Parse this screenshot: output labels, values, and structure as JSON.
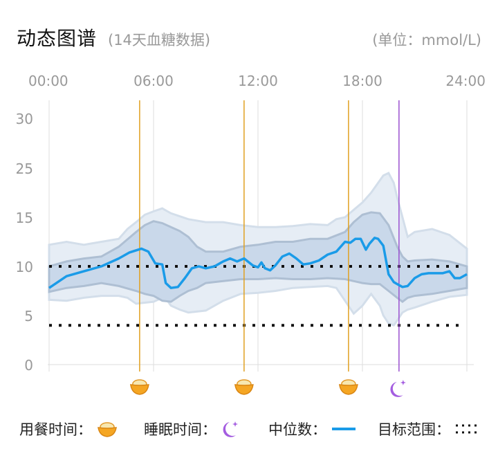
{
  "header": {
    "title": "动态图谱",
    "subtitle": "(14天血糖数据)",
    "unit": "(单位：mmol/L)"
  },
  "legend": {
    "meal": "用餐时间：",
    "sleep": "睡眠时间：",
    "median": "中位数：",
    "target": "目标范围："
  },
  "colors": {
    "median": "#1a9be8",
    "inner_band": "#c9d8ea",
    "outer_band": "#e6edf5",
    "meal_line": "#e0a020",
    "sleep_line": "#9a4fd0",
    "target": "#111111"
  },
  "chart_data": {
    "type": "area",
    "xlim": [
      0,
      24
    ],
    "ylim": [
      0,
      30
    ],
    "x_ticks": [
      "00:00",
      "06:00",
      "12:00",
      "18:00",
      "24:00"
    ],
    "y_ticks": [
      "0",
      "5",
      "10",
      "15",
      "25",
      "30"
    ],
    "target_range": [
      4,
      10
    ],
    "meal_times": [
      5.2,
      11.2,
      17.2
    ],
    "sleep_time": 20.1,
    "series": [
      {
        "name": "中位数",
        "x": [
          0,
          1,
          2,
          3,
          4,
          4.6,
          5.3,
          5.7,
          6.1,
          6.5,
          6.7,
          7,
          7.4,
          7.8,
          8.2,
          8.6,
          9,
          9.5,
          10,
          10.4,
          10.8,
          11.2,
          11.7,
          12,
          12.2,
          12.4,
          12.7,
          13,
          13.4,
          13.8,
          14.2,
          14.6,
          15,
          15.5,
          16,
          16.5,
          17,
          17.3,
          17.6,
          17.9,
          18.2,
          18.4,
          18.7,
          18.9,
          19.2,
          19.5,
          19.8,
          20,
          20.3,
          20.6,
          21,
          21.4,
          21.8,
          22.2,
          22.6,
          23,
          23.3,
          23.6,
          24
        ],
        "y": [
          7.8,
          9,
          9.5,
          10,
          10.8,
          11.4,
          11.8,
          11.5,
          10.3,
          10.2,
          8.3,
          7.8,
          7.9,
          8.8,
          9.8,
          10,
          9.8,
          10,
          10.5,
          10.8,
          10.5,
          10.8,
          10.1,
          9.9,
          10.4,
          9.8,
          9.6,
          10.1,
          11,
          11.3,
          10.8,
          10.2,
          10.3,
          10.6,
          11.2,
          11.5,
          12.5,
          12.4,
          12.8,
          12.8,
          11.7,
          12.3,
          12.9,
          12.8,
          12.1,
          9.2,
          8.4,
          8.2,
          7.9,
          8,
          8.8,
          9.2,
          9.3,
          9.3,
          9.3,
          9.5,
          8.8,
          8.8,
          9.2
        ]
      },
      {
        "name": "内层范围",
        "x": [
          0,
          1,
          2,
          3,
          4,
          5,
          5.5,
          6,
          6.5,
          7,
          7.5,
          8,
          8.5,
          9,
          10,
          11,
          12,
          13,
          14,
          15,
          16,
          17,
          17.5,
          18,
          18.5,
          19,
          19.5,
          20,
          20.3,
          20.6,
          21,
          22,
          23,
          24
        ],
        "upper": [
          10,
          10.5,
          10.8,
          11,
          12,
          13.5,
          14.2,
          14.6,
          14.4,
          14,
          13.6,
          13,
          12,
          11.5,
          11.5,
          12,
          12.2,
          12.5,
          12.5,
          12.8,
          12.8,
          13.5,
          14.5,
          15.5,
          16,
          15.8,
          14.2,
          12,
          11,
          10.5,
          10.6,
          10.7,
          10.5,
          10
        ],
        "lower": [
          7.4,
          7.8,
          8,
          8.3,
          8,
          7.5,
          7.2,
          7,
          6.5,
          6.4,
          7,
          7.5,
          7.8,
          8.3,
          8.5,
          8.7,
          8.7,
          8.8,
          8.7,
          8.7,
          8.8,
          8.7,
          8.5,
          8.3,
          8.2,
          8.2,
          7.5,
          6.8,
          6.4,
          6.8,
          7,
          7.2,
          7.5,
          7.8
        ]
      },
      {
        "name": "外层范围",
        "x": [
          0,
          1,
          2,
          3,
          4,
          4.5,
          5,
          5.5,
          6,
          6.5,
          6.8,
          7,
          7.5,
          8,
          9,
          10,
          11,
          12,
          13,
          14,
          15,
          16,
          16.5,
          17,
          17.5,
          18,
          18.5,
          19,
          19.2,
          19.5,
          19.8,
          20,
          20.3,
          20.6,
          21,
          22,
          23,
          24
        ],
        "upper": [
          12.2,
          12.5,
          12.2,
          12.5,
          12.8,
          13.8,
          14.5,
          15.5,
          16.2,
          16.8,
          16.2,
          15.8,
          15.2,
          14.8,
          14.5,
          14.5,
          14.2,
          14,
          14,
          14.1,
          14.3,
          14.2,
          14.8,
          15,
          16.5,
          18,
          20,
          22.5,
          23.5,
          24,
          22,
          19,
          15,
          13,
          13.5,
          13.8,
          13.2,
          11.8
        ],
        "lower": [
          6.6,
          6.5,
          6.8,
          7,
          7,
          6.8,
          6.2,
          6.3,
          6.4,
          6.8,
          6.5,
          6,
          5.6,
          5.3,
          5.5,
          6.5,
          7.2,
          7.3,
          7.5,
          7.8,
          7.9,
          8,
          7.8,
          6.5,
          5.2,
          6,
          7.2,
          6,
          5,
          4.2,
          4,
          4.5,
          5.3,
          5.6,
          5.8,
          6.4,
          6.9,
          7.1
        ]
      }
    ]
  }
}
